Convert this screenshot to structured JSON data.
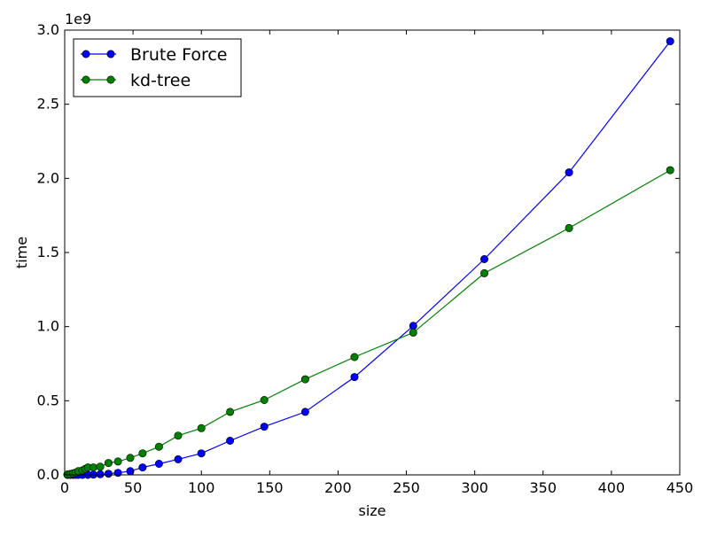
{
  "chart_data": {
    "type": "line",
    "xlabel": "size",
    "ylabel": "time",
    "y_offset_text": "1e9",
    "xlim": [
      0,
      450
    ],
    "ylim": [
      0,
      3.0
    ],
    "x_ticks": [
      0,
      50,
      100,
      150,
      200,
      250,
      300,
      350,
      400,
      450
    ],
    "x_tick_labels": [
      "0",
      "50",
      "100",
      "150",
      "200",
      "250",
      "300",
      "350",
      "400",
      "450"
    ],
    "y_ticks": [
      0,
      0.5,
      1.0,
      1.5,
      2.0,
      2.5,
      3.0
    ],
    "y_tick_labels": [
      "0.0",
      "0.5",
      "1.0",
      "1.5",
      "2.0",
      "2.5",
      "3.0"
    ],
    "grid": false,
    "legend_position": "top-left",
    "series": [
      {
        "name": "Brute Force",
        "color": "#0000ff",
        "marker": "circle",
        "x": [
          2,
          4,
          6,
          8,
          10,
          13,
          17,
          21,
          26,
          32,
          39,
          48,
          57,
          69,
          83,
          100,
          121,
          146,
          176,
          212,
          255,
          307,
          369,
          443
        ],
        "y": [
          0.0,
          0.0,
          0.0,
          0.0,
          0.0,
          0.0,
          0.0,
          0.002,
          0.004,
          0.008,
          0.014,
          0.025,
          0.05,
          0.075,
          0.105,
          0.145,
          0.23,
          0.325,
          0.425,
          0.66,
          1.005,
          1.455,
          2.04,
          2.925
        ]
      },
      {
        "name": "kd-tree",
        "color": "#008000",
        "marker": "circle",
        "x": [
          2,
          4,
          6,
          8,
          10,
          13,
          15,
          17,
          21,
          26,
          32,
          39,
          48,
          57,
          69,
          83,
          100,
          121,
          146,
          176,
          212,
          255,
          307,
          369,
          443
        ],
        "y": [
          0.003,
          0.006,
          0.01,
          0.015,
          0.025,
          0.03,
          0.04,
          0.05,
          0.05,
          0.055,
          0.08,
          0.09,
          0.115,
          0.145,
          0.19,
          0.265,
          0.315,
          0.425,
          0.505,
          0.645,
          0.795,
          0.96,
          1.36,
          1.665,
          2.055
        ]
      }
    ]
  }
}
